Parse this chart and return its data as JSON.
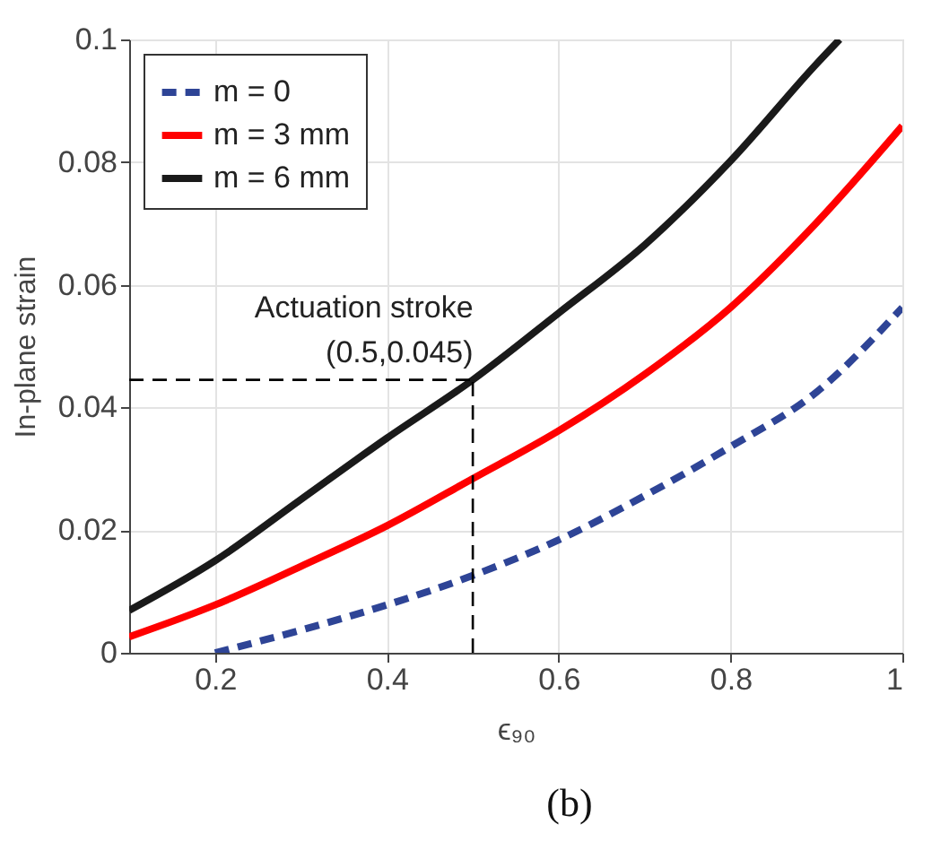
{
  "chart_data": {
    "type": "line",
    "xlabel": "ϵ₉₀",
    "ylabel": "In-plane strain",
    "xlim": [
      0.1,
      1.0
    ],
    "ylim": [
      0,
      0.1
    ],
    "xticks": [
      0.2,
      0.4,
      0.6,
      0.8,
      {
        "value": 1,
        "label": "1"
      }
    ],
    "yticks": [
      {
        "value": 0,
        "label": "0"
      },
      0.02,
      0.04,
      0.06,
      0.08,
      {
        "value": 0.1,
        "label": "0.1"
      }
    ],
    "grid": true,
    "legend": "top left",
    "marker": "none",
    "series": [
      {
        "name": "m = 0",
        "color": "#2e4496",
        "line_style": "dashed",
        "x": [
          0.2,
          0.3,
          0.4,
          0.5,
          0.6,
          0.7,
          0.8,
          0.9,
          1.0
        ],
        "values": [
          0,
          0.0037,
          0.0078,
          0.0126,
          0.0184,
          0.0256,
          0.0336,
          0.0425,
          0.0563
        ]
      },
      {
        "name": "m = 3 mm",
        "color": "#ff0000",
        "line_style": "solid",
        "x": [
          0.1,
          0.2,
          0.3,
          0.4,
          0.5,
          0.6,
          0.7,
          0.8,
          0.9,
          1.0
        ],
        "values": [
          0.0026,
          0.0078,
          0.0141,
          0.0207,
          0.0284,
          0.0362,
          0.0454,
          0.0563,
          0.0701,
          0.0859
        ]
      },
      {
        "name": "m = 6 mm",
        "color": "#1a1a1a",
        "line_style": "solid",
        "x": [
          0.1,
          0.2,
          0.3,
          0.4,
          0.5,
          0.6,
          0.7,
          0.8,
          0.9,
          0.927
        ],
        "values": [
          0.0069,
          0.015,
          0.025,
          0.035,
          0.0445,
          0.0554,
          0.0665,
          0.0802,
          0.096,
          0.1
        ]
      }
    ],
    "ref_lines": [
      {
        "axis": "x",
        "value": 0.5,
        "line_style": "dashed",
        "color": "#000000"
      },
      {
        "axis": "y",
        "value": 0.0445,
        "line_style": "dashed",
        "color": "#000000"
      }
    ],
    "annotations": [
      "Actuation stroke",
      "(0.5,0.045)",
      "(b)"
    ]
  }
}
